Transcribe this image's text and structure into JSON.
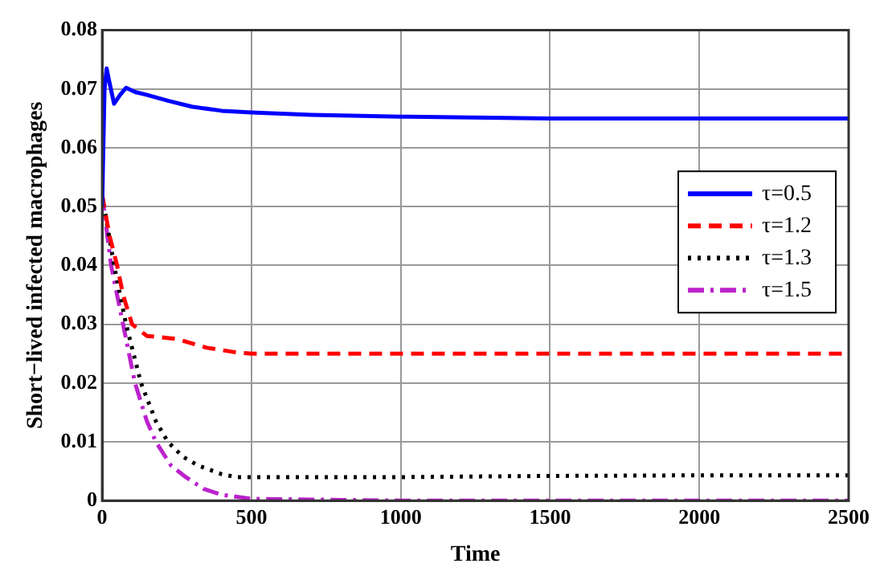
{
  "chart_data": {
    "type": "line",
    "xlabel": "Time",
    "ylabel": "Short−lived infected macrophages",
    "xlim": [
      0,
      2500
    ],
    "xticks": [
      0,
      500,
      1000,
      1500,
      2000,
      2500
    ],
    "ylim": [
      0,
      0.08
    ],
    "yticks": [
      0,
      0.01,
      0.02,
      0.03,
      0.04,
      0.05,
      0.06,
      0.07,
      0.08
    ],
    "grid": true,
    "legend": "right",
    "marker": "none",
    "series": [
      {
        "name": "τ=0.5",
        "color": "#0000ff",
        "line_style": "solid",
        "x": [
          0,
          8,
          15,
          25,
          40,
          60,
          80,
          110,
          150,
          220,
          300,
          400,
          500,
          700,
          1000,
          1500,
          2000,
          2500
        ],
        "values": [
          0.05,
          0.07,
          0.0735,
          0.071,
          0.0675,
          0.069,
          0.0702,
          0.0695,
          0.069,
          0.068,
          0.067,
          0.0663,
          0.066,
          0.0656,
          0.0653,
          0.065,
          0.065,
          0.065
        ]
      },
      {
        "name": "τ=1.2",
        "color": "#ff0000",
        "line_style": "dashed",
        "x": [
          0,
          25,
          50,
          70,
          100,
          150,
          250,
          350,
          450,
          500,
          1000,
          1500,
          2000,
          2500
        ],
        "values": [
          0.052,
          0.045,
          0.04,
          0.035,
          0.03,
          0.028,
          0.0275,
          0.026,
          0.0252,
          0.025,
          0.025,
          0.025,
          0.025,
          0.025
        ]
      },
      {
        "name": "τ=1.3",
        "color": "#000000",
        "line_style": "dotted",
        "x": [
          0,
          40,
          80,
          130,
          180,
          220,
          270,
          320,
          400,
          450,
          500,
          1000,
          1500,
          2000,
          2500
        ],
        "values": [
          0.052,
          0.04,
          0.03,
          0.02,
          0.0135,
          0.01,
          0.0075,
          0.006,
          0.0045,
          0.004,
          0.004,
          0.004,
          0.0042,
          0.0043,
          0.0043
        ]
      },
      {
        "name": "τ=1.5",
        "color": "#bb22cc",
        "line_style": "dashdot",
        "x": [
          0,
          30,
          70,
          110,
          150,
          180,
          230,
          280,
          340,
          400,
          500,
          1000,
          1500,
          2000,
          2500
        ],
        "values": [
          0.052,
          0.04,
          0.03,
          0.02,
          0.0135,
          0.01,
          0.006,
          0.004,
          0.002,
          0.001,
          0.0003,
          0,
          0,
          0,
          0
        ]
      }
    ]
  }
}
